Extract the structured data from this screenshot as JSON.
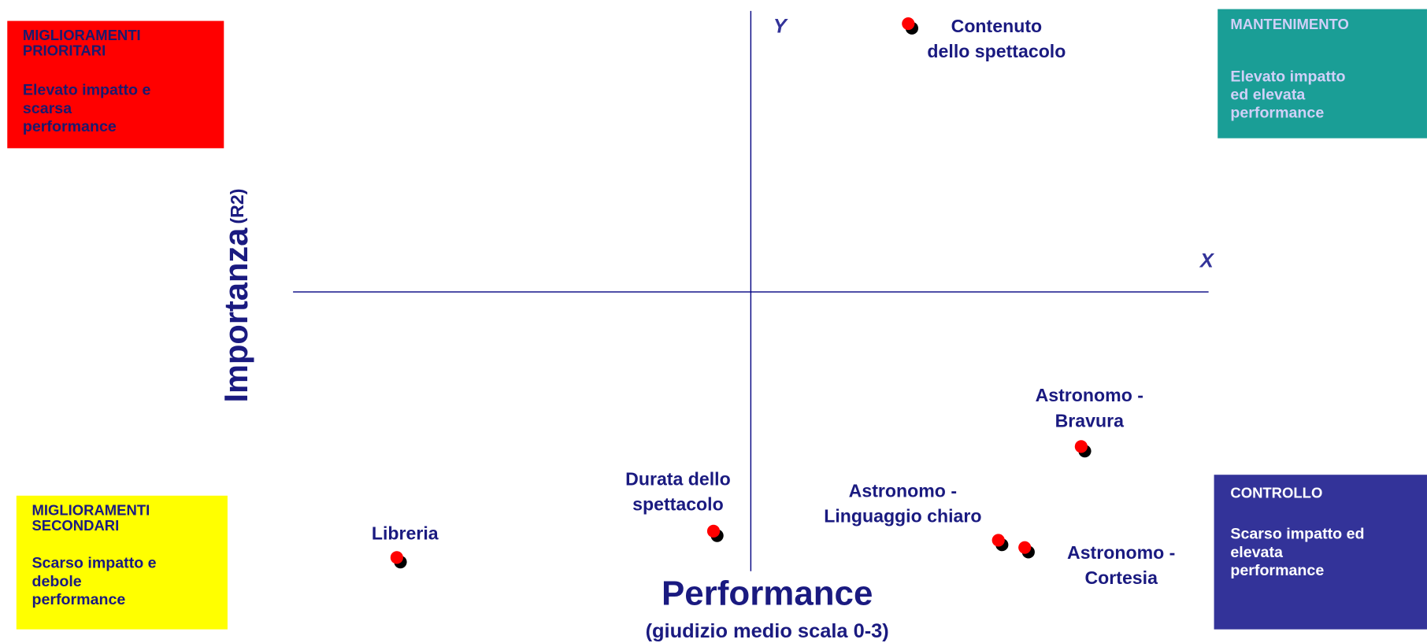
{
  "quadrants": [
    {
      "title": [
        "MIGLIORAMENTI",
        "PRIORITARI"
      ],
      "text": [
        "Elevato impatto e",
        "scarsa",
        "performance"
      ]
    },
    {
      "title": [
        "MANTENIMENTO"
      ],
      "text": [
        "Elevato impatto",
        "ed elevata",
        "performance"
      ]
    },
    {
      "title": [
        "MIGLIORAMENTI",
        "SECONDARI"
      ],
      "text": [
        "Scarso impatto e",
        "debole",
        "performance"
      ]
    },
    {
      "title": [
        "CONTROLLO"
      ],
      "text": [
        "Scarso impatto ed",
        "elevata",
        "performance"
      ]
    }
  ],
  "axes": {
    "y_letter": "Y",
    "x_letter": "X",
    "y_label": "Importanza",
    "y_label_suffix": "(R2)",
    "x_label": "Performance",
    "x_sublabel": "(giudizio medio scala 0-3)"
  },
  "points": [
    {
      "label": [
        "Contenuto",
        "dello spettacolo"
      ]
    },
    {
      "label": [
        "Durata dello",
        "spettacolo"
      ]
    },
    {
      "label": [
        "Libreria"
      ]
    },
    {
      "label": [
        "Astronomo -",
        "Bravura"
      ]
    },
    {
      "label": [
        "Astronomo -",
        "Linguaggio chiaro"
      ]
    },
    {
      "label": [
        "Astronomo -",
        "Cortesia"
      ]
    }
  ]
}
